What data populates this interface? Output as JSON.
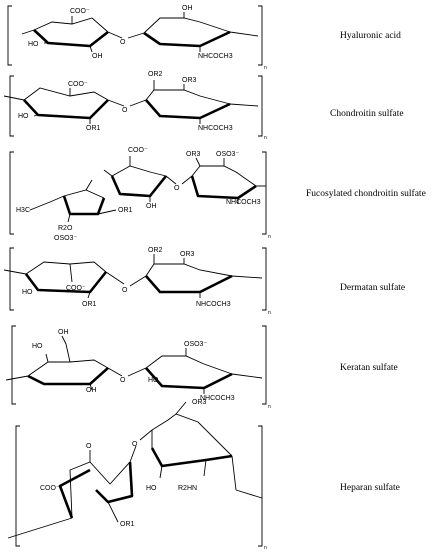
{
  "compounds": [
    {
      "name": "Hyaluronic acid",
      "subscript": "n",
      "labels": [
        "COO⁻",
        "OH",
        "HO",
        "OH",
        "NHCOCH3"
      ]
    },
    {
      "name": "Chondroitin sulfate",
      "subscript": "n",
      "labels": [
        "OR2",
        "COO⁻",
        "OR3",
        "HO",
        "OR1",
        "NHCOCH3"
      ]
    },
    {
      "name": "Fucosylated chondroitin sulfate",
      "subscript": "n",
      "labels": [
        "COO⁻",
        "OR3",
        "OSO3⁻",
        "H3C",
        "OH",
        "OR1",
        "R2O",
        "OSO3⁻",
        "NHCOCH3"
      ]
    },
    {
      "name": "Dermatan sulfate",
      "subscript": "n",
      "labels": [
        "OR2",
        "OR3",
        "COO⁻",
        "HO",
        "OR1",
        "NHCOCH3"
      ]
    },
    {
      "name": "Keratan sulfate",
      "subscript": "n",
      "labels": [
        "OH",
        "HO",
        "OSO3⁻",
        "HO",
        "OH",
        "NHCOCH3"
      ]
    },
    {
      "name": "Heparan sulfate",
      "subscript": "n",
      "labels": [
        "OR3",
        "O",
        "COO⁻",
        "HO",
        "R2HN",
        "OR1"
      ]
    }
  ]
}
